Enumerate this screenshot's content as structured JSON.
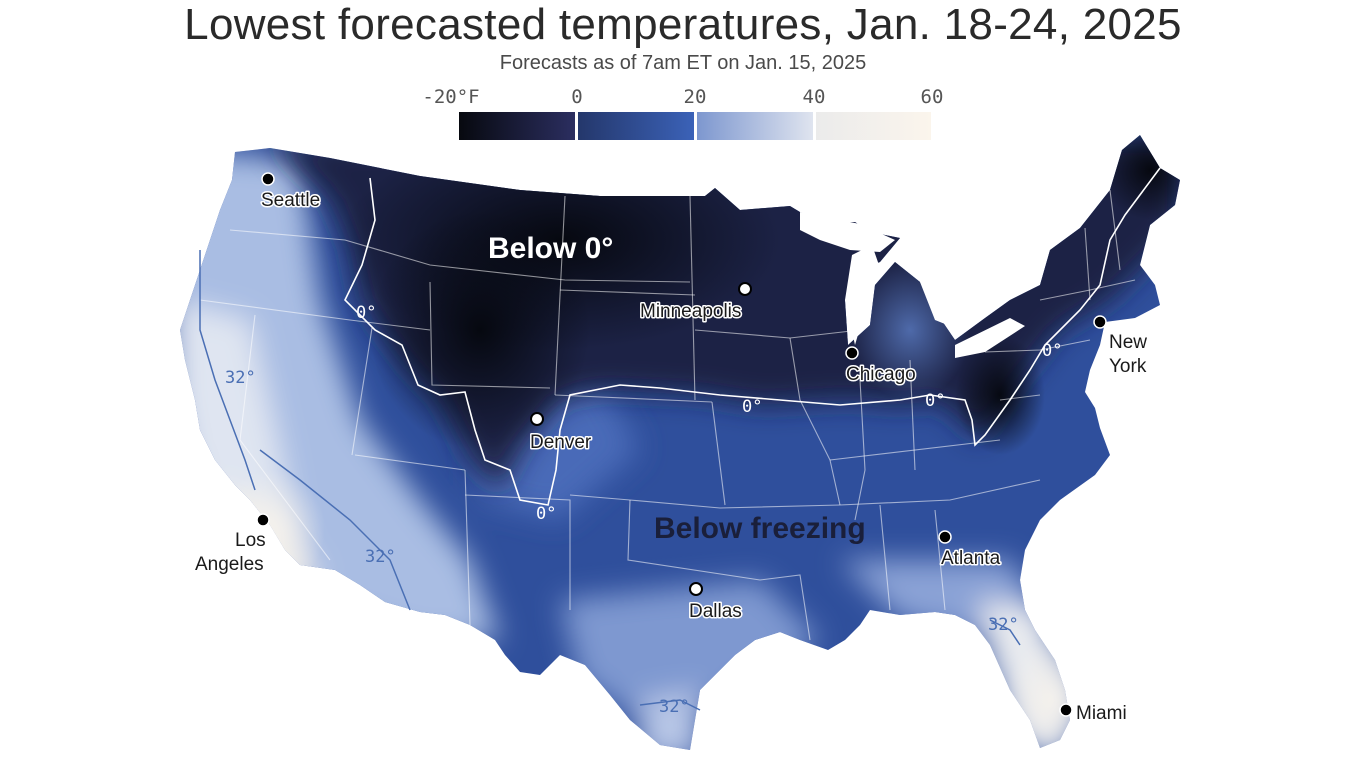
{
  "header": {
    "title": "Lowest forecasted temperatures,  Jan. 18-24, 2025",
    "subtitle": "Forecasts as of 7am ET on Jan. 15, 2025"
  },
  "legend": {
    "ticks": [
      "-20°F",
      "0",
      "20",
      "40",
      "60"
    ],
    "bins": [
      {
        "from": -20,
        "to": 0,
        "start": "#07090f",
        "end": "#2b2e60"
      },
      {
        "from": 0,
        "to": 20,
        "start": "#24376b",
        "end": "#3b62b8"
      },
      {
        "from": 20,
        "to": 40,
        "start": "#7d97cf",
        "end": "#dfe4ef"
      },
      {
        "from": 40,
        "to": 60,
        "start": "#ebebeb",
        "end": "#fbf5ec"
      }
    ]
  },
  "map": {
    "region_labels": {
      "below_zero": "Below 0°",
      "below_freezing": "Below freezing"
    },
    "isotherms": {
      "zero": "0°",
      "freezing": "32°"
    },
    "cities": [
      {
        "name": "Seattle",
        "lines": [
          "Seattle"
        ],
        "marker": "filled"
      },
      {
        "name": "Minneapolis",
        "lines": [
          "Minneapolis"
        ],
        "marker": "open"
      },
      {
        "name": "Chicago",
        "lines": [
          "Chicago"
        ],
        "marker": "filled"
      },
      {
        "name": "New York",
        "lines": [
          "New",
          "York"
        ],
        "marker": "filled"
      },
      {
        "name": "Denver",
        "lines": [
          "Denver"
        ],
        "marker": "open"
      },
      {
        "name": "Los Angeles",
        "lines": [
          "Los",
          "Angeles"
        ],
        "marker": "filled"
      },
      {
        "name": "Atlanta",
        "lines": [
          "Atlanta"
        ],
        "marker": "filled"
      },
      {
        "name": "Dallas",
        "lines": [
          "Dallas"
        ],
        "marker": "open"
      },
      {
        "name": "Miami",
        "lines": [
          "Miami"
        ],
        "marker": "filled"
      }
    ],
    "colors": {
      "deep_cold": "#0a0d16",
      "below_zero": "#1c2244",
      "cold": "#2f4f9c",
      "mid": "#6f8ccb",
      "cool": "#b9c8e6",
      "mild": "#efeeee",
      "zero_line": "#ffffff",
      "freezing_line": "#4a6fb4"
    }
  }
}
